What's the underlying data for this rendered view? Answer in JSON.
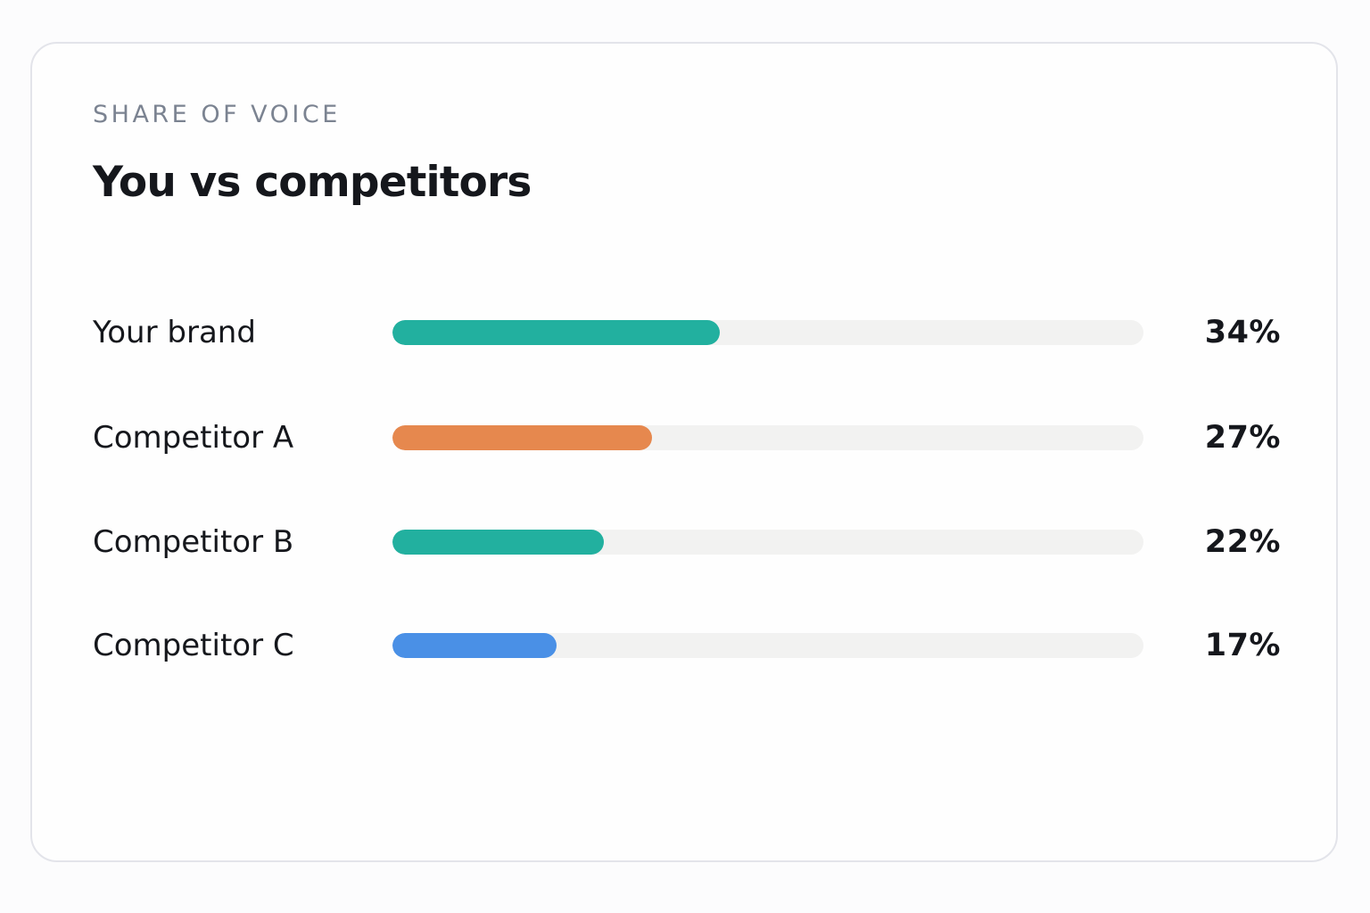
{
  "card": {
    "eyebrow": "SHARE OF VOICE",
    "title": "You vs competitors"
  },
  "chart_data": {
    "type": "bar",
    "orientation": "horizontal",
    "title": "You vs competitors",
    "categories": [
      "Your brand",
      "Competitor A",
      "Competitor B",
      "Competitor C"
    ],
    "values": [
      34,
      27,
      22,
      17
    ],
    "value_labels": [
      "34%",
      "27%",
      "22%",
      "17%"
    ],
    "colors": [
      "#22b09f",
      "#e6884e",
      "#22b09f",
      "#4a90e6"
    ],
    "track_color": "#f2f2f1",
    "xlim": [
      0,
      78
    ],
    "grid": false
  }
}
